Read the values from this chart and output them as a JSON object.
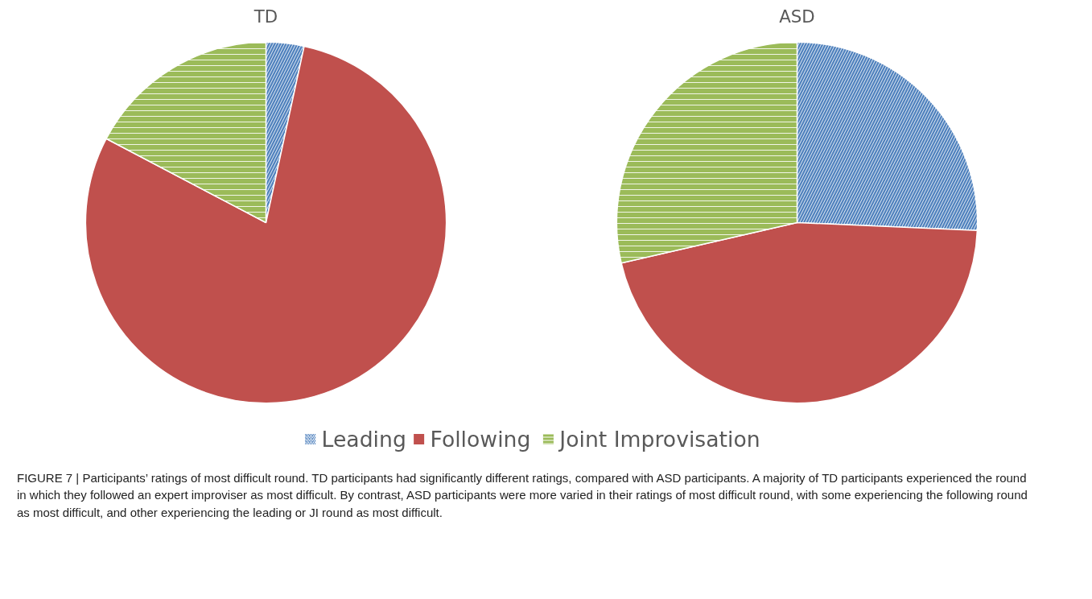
{
  "chart_data": [
    {
      "type": "pie",
      "title": "TD",
      "categories": [
        "Leading",
        "Following",
        "Joint Improvisation"
      ],
      "values": [
        3.4,
        79.3,
        17.3
      ],
      "colors": [
        "#4f81bd",
        "#c0504d",
        "#9bbb59"
      ],
      "legend": "bottom",
      "annotations": [
        "FIGURE 7 | Participants’ ratings of most difficult round. TD participants had significantly different ratings, compared with ASD participants. A majority of TD participants experienced the round in which they followed an expert improviser as most difficult. By contrast, ASD participants were more varied in their ratings of most difficult round, with some experiencing the following round as most difficult, and other experiencing the leading or JI round as most difficult."
      ]
    },
    {
      "type": "pie",
      "title": "ASD",
      "categories": [
        null,
        null,
        null
      ],
      "values": [
        25.7,
        45.7,
        28.6
      ],
      "colors": [
        "#4f81bd",
        "#c0504d",
        "#9bbb59"
      ]
    }
  ]
}
